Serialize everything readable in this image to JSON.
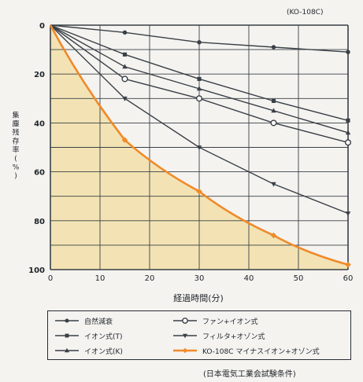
{
  "model_label": "(KO-108C)",
  "footnote": "(日本電気工業会試験条件)",
  "chart_data": {
    "type": "line",
    "xlabel": "経過時間(分)",
    "ylabel": "集塵残存率(%)",
    "xlim": [
      0,
      60
    ],
    "ylim": [
      0,
      100
    ],
    "y_inverted": true,
    "x_ticks": [
      0,
      10,
      20,
      30,
      40,
      50,
      60
    ],
    "y_ticks": [
      0,
      20,
      40,
      60,
      80,
      100
    ],
    "grid": true,
    "legend_position": "bottom",
    "shaded_series": "KO-108C マイナスイオン+オゾン式",
    "series": [
      {
        "name": "自然減衰",
        "marker": "dot",
        "color": "#3a4046",
        "x": [
          0,
          15,
          30,
          45,
          60
        ],
        "y": [
          0,
          3,
          7,
          9,
          11
        ]
      },
      {
        "name": "イオン式(T)",
        "marker": "square",
        "color": "#3a4046",
        "x": [
          0,
          15,
          30,
          45,
          60
        ],
        "y": [
          0,
          12,
          22,
          31,
          39
        ]
      },
      {
        "name": "イオン式(K)",
        "marker": "triangle",
        "color": "#3a4046",
        "x": [
          0,
          15,
          30,
          45,
          60
        ],
        "y": [
          0,
          17,
          26,
          35,
          44
        ]
      },
      {
        "name": "ファン+イオン式",
        "marker": "circle-open",
        "color": "#3a4046",
        "x": [
          0,
          15,
          30,
          45,
          60
        ],
        "y": [
          0,
          22,
          30,
          40,
          48
        ]
      },
      {
        "name": "フィルタ+オゾン式",
        "marker": "triangle-down",
        "color": "#3a4046",
        "x": [
          0,
          15,
          30,
          45,
          60
        ],
        "y": [
          0,
          30,
          50,
          65,
          77
        ]
      },
      {
        "name": "KO-108C マイナスイオン+オゾン式",
        "marker": "diamond",
        "color": "#f08a2a",
        "x": [
          0,
          15,
          30,
          45,
          60
        ],
        "y": [
          0,
          47,
          68,
          86,
          98
        ]
      }
    ]
  },
  "legend": {
    "items": [
      {
        "label": "自然減衰",
        "series": 0
      },
      {
        "label": "ファン+イオン式",
        "series": 3
      },
      {
        "label": "イオン式(T)",
        "series": 1
      },
      {
        "label": "フィルタ+オゾン式",
        "series": 4
      },
      {
        "label": "イオン式(K)",
        "series": 2
      },
      {
        "label": "KO-108C マイナスイオン+オゾン式",
        "series": 5
      }
    ]
  },
  "colors": {
    "shade": "#f3e3b4",
    "grid": "#3a4046",
    "accent": "#f08a2a"
  }
}
